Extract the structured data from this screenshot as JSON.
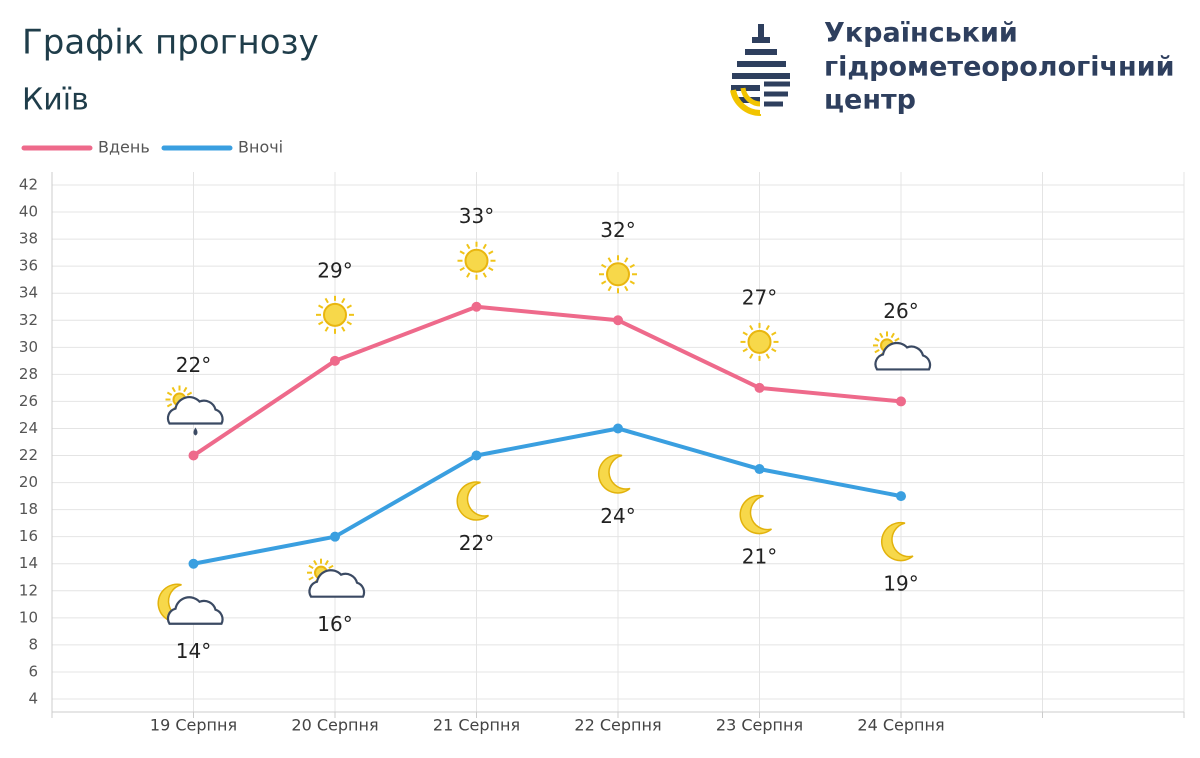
{
  "header": {
    "title": "Графік прогнозу",
    "subtitle": "Київ",
    "logo_text": [
      "Український",
      "гідрометеорологічний",
      "центр"
    ]
  },
  "chart_data": {
    "type": "line",
    "categories": [
      null,
      "19 Серпня",
      "20 Серпня",
      "21 Серпня",
      "22 Серпня",
      "23 Серпня",
      "24 Серпня",
      null,
      null
    ],
    "series": [
      {
        "name": "Вдень",
        "color": "#ee6a8b",
        "values": [
          null,
          22,
          29,
          33,
          32,
          27,
          26,
          null,
          null
        ],
        "value_labels": [
          null,
          "22°",
          "29°",
          "33°",
          "32°",
          "27°",
          "26°",
          null,
          null
        ]
      },
      {
        "name": "Вночі",
        "color": "#3a9fe0",
        "values": [
          null,
          14,
          16,
          22,
          24,
          21,
          19,
          null,
          null
        ],
        "value_labels": [
          null,
          "14°",
          "16°",
          "22°",
          "24°",
          "21°",
          "19°",
          null,
          null
        ]
      }
    ],
    "ylim": [
      4,
      42
    ],
    "yticks": [
      4,
      6,
      8,
      10,
      12,
      14,
      16,
      18,
      20,
      22,
      24,
      26,
      28,
      30,
      32,
      34,
      36,
      38,
      40,
      42
    ],
    "grid": true,
    "legend": "top-left"
  }
}
